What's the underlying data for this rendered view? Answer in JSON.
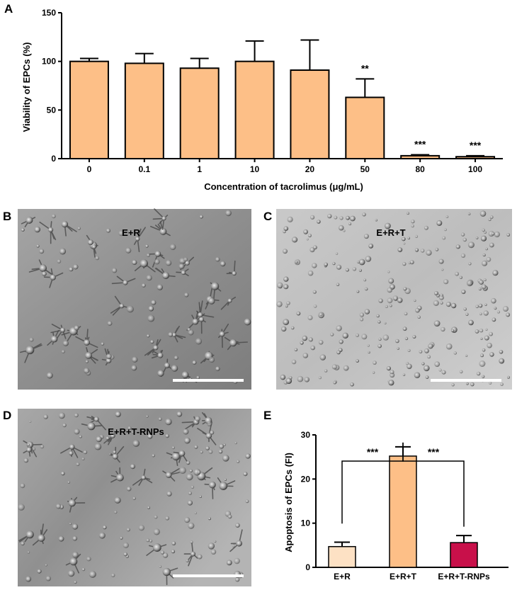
{
  "panels": {
    "A": "A",
    "B": "B",
    "C": "C",
    "D": "D",
    "E": "E"
  },
  "micrographs": [
    {
      "panel": "B",
      "label": "E+R"
    },
    {
      "panel": "C",
      "label": "E+R+T"
    },
    {
      "panel": "D",
      "label": "E+R+T-RNPs"
    }
  ],
  "colors": {
    "bar_peach": "#fdbf87",
    "bar_light": "#fde1c4",
    "bar_crimson": "#c8104a",
    "axis": "#000000",
    "micrograph_gray": "#8c8c8c"
  },
  "chart_data": [
    {
      "panel": "A",
      "type": "bar",
      "categories": [
        "0",
        "0.1",
        "1",
        "10",
        "20",
        "50",
        "80",
        "100"
      ],
      "values": [
        100,
        98,
        93,
        100,
        91,
        63,
        3,
        2
      ],
      "errors": [
        3,
        10,
        10,
        21,
        31,
        19,
        1,
        1
      ],
      "significance": [
        "",
        "",
        "",
        "",
        "",
        "**",
        "***",
        "***"
      ],
      "xlabel": "Concentration of tacrolimus (μg/mL)",
      "ylabel": "Viability of EPCs (%)",
      "ylim": [
        0,
        150
      ],
      "yticks": [
        0,
        50,
        100,
        150
      ],
      "grid": false
    },
    {
      "panel": "E",
      "type": "bar",
      "categories": [
        "E+R",
        "E+R+T",
        "E+R+T-RNPs"
      ],
      "values": [
        4.7,
        25.2,
        5.6
      ],
      "errors": [
        1.0,
        2.1,
        1.6
      ],
      "comparisons": [
        {
          "from": "E+R",
          "to": "E+R+T",
          "label": "***"
        },
        {
          "from": "E+R+T",
          "to": "E+R+T-RNPs",
          "label": "***"
        }
      ],
      "xlabel": "",
      "ylabel": "Apoptosis of EPCs  (FI)",
      "ylim": [
        0,
        30
      ],
      "yticks": [
        0,
        10,
        20,
        30
      ],
      "grid": false
    }
  ]
}
